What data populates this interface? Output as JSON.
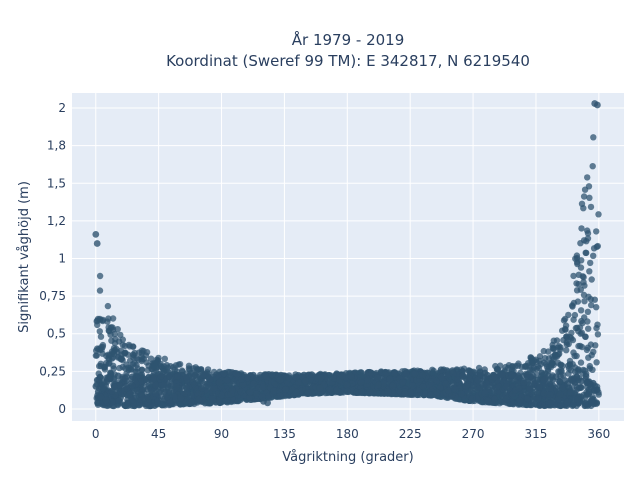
{
  "chart_data": {
    "type": "scatter",
    "title": "År 1979 - 2019",
    "subtitle": "Koordinat (Sweref 99 TM): E 342817, N 6219540",
    "xlabel": "Vågriktning (grader)",
    "ylabel": "Signifikant våghöjd (m)",
    "xlim": [
      -17,
      378
    ],
    "ylim": [
      -0.08,
      2.1
    ],
    "x_ticks": [
      0,
      45,
      90,
      135,
      180,
      225,
      270,
      315,
      360
    ],
    "x_tick_labels": [
      "0",
      "45",
      "90",
      "135",
      "180",
      "225",
      "270",
      "315",
      "360"
    ],
    "y_ticks": [
      0,
      0.25,
      0.5,
      0.75,
      1,
      1.25,
      1.5,
      1.75,
      2
    ],
    "y_tick_labels": [
      "0",
      "0,25",
      "0,5",
      "0,75",
      "1",
      "1,2",
      "1,5",
      "1,8",
      "2"
    ],
    "grid": true,
    "legend": "none",
    "marker_color": "#2f5470",
    "background_color": "#e5ecf6",
    "envelope": {
      "direction": [
        0,
        5,
        10,
        15,
        20,
        30,
        45,
        60,
        90,
        120,
        150,
        180,
        210,
        240,
        270,
        300,
        320,
        330,
        340,
        345,
        350,
        355,
        360
      ],
      "hs_min": [
        0.03,
        0.02,
        0.02,
        0.02,
        0.02,
        0.02,
        0.02,
        0.03,
        0.04,
        0.07,
        0.1,
        0.11,
        0.1,
        0.09,
        0.05,
        0.03,
        0.02,
        0.02,
        0.02,
        0.02,
        0.02,
        0.02,
        0.03
      ],
      "hs_max": [
        1.15,
        0.85,
        0.65,
        0.55,
        0.46,
        0.42,
        0.35,
        0.3,
        0.25,
        0.23,
        0.23,
        0.24,
        0.25,
        0.26,
        0.27,
        0.3,
        0.38,
        0.48,
        0.8,
        1.15,
        1.55,
        2.04,
        1.4
      ]
    },
    "extreme_points": [
      {
        "x": 357,
        "y": 2.03
      },
      {
        "x": 359,
        "y": 2.02
      },
      {
        "x": 0,
        "y": 1.16
      },
      {
        "x": 1,
        "y": 1.1
      },
      {
        "x": 120,
        "y": 0.05
      },
      {
        "x": 123,
        "y": 0.04
      }
    ]
  }
}
